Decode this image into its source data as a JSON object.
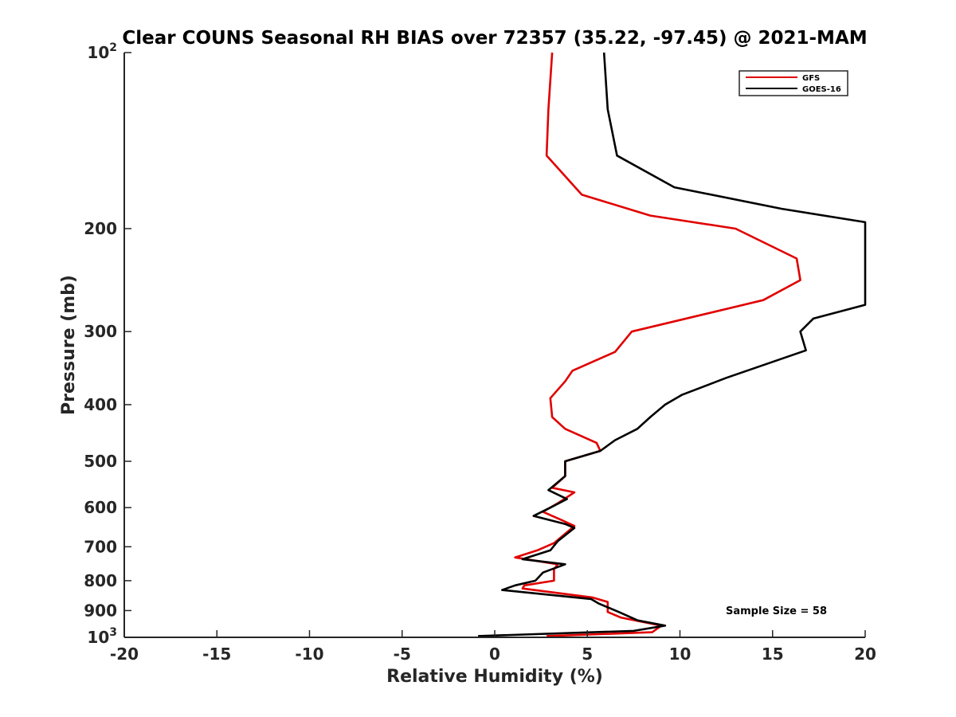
{
  "chart_data": {
    "type": "line",
    "title": "Clear COUNS Seasonal RH BIAS over 72357 (35.22, -97.45) @ 2021-MAM",
    "xlabel": "Relative Humidity (%)",
    "ylabel": "Pressure (mb)",
    "xlim": [
      -20,
      20
    ],
    "ylim": [
      100,
      1000
    ],
    "y_scale": "log",
    "y_reversed": true,
    "x_ticks": [
      "-20",
      "-15",
      "-10",
      "-5",
      "0",
      "5",
      "10",
      "15",
      "20"
    ],
    "y_ticks": [
      {
        "value": 100,
        "base": "10",
        "exp": "2"
      },
      {
        "value": 200,
        "label": "200"
      },
      {
        "value": 300,
        "label": "300"
      },
      {
        "value": 400,
        "label": "400"
      },
      {
        "value": 500,
        "label": "500"
      },
      {
        "value": 600,
        "label": "600"
      },
      {
        "value": 700,
        "label": "700"
      },
      {
        "value": 800,
        "label": "800"
      },
      {
        "value": 900,
        "label": "900"
      },
      {
        "value": 1000,
        "base": "10",
        "exp": "3"
      }
    ],
    "legend_position": "top-right",
    "annotation": "Sample Size = 58",
    "series": [
      {
        "name": "GFS",
        "color": "#e00000",
        "points": [
          [
            3.1,
            100
          ],
          [
            2.9,
            125
          ],
          [
            2.8,
            150
          ],
          [
            4.7,
            175
          ],
          [
            8.4,
            190
          ],
          [
            13.0,
            200
          ],
          [
            16.3,
            225
          ],
          [
            16.5,
            245
          ],
          [
            14.5,
            265
          ],
          [
            7.4,
            300
          ],
          [
            6.5,
            325
          ],
          [
            4.2,
            350
          ],
          [
            3.8,
            365
          ],
          [
            3.0,
            390
          ],
          [
            3.1,
            420
          ],
          [
            3.8,
            440
          ],
          [
            5.5,
            465
          ],
          [
            5.7,
            480
          ],
          [
            3.8,
            500
          ],
          [
            3.8,
            530
          ],
          [
            3.1,
            555
          ],
          [
            4.3,
            565
          ],
          [
            3.4,
            590
          ],
          [
            2.6,
            610
          ],
          [
            3.6,
            630
          ],
          [
            4.3,
            645
          ],
          [
            3.2,
            690
          ],
          [
            2.3,
            710
          ],
          [
            1.1,
            730
          ],
          [
            3.4,
            750
          ],
          [
            3.2,
            765
          ],
          [
            3.2,
            800
          ],
          [
            1.6,
            815
          ],
          [
            1.5,
            825
          ],
          [
            5.3,
            855
          ],
          [
            6.1,
            870
          ],
          [
            6.1,
            905
          ],
          [
            6.8,
            925
          ],
          [
            9.0,
            955
          ],
          [
            8.5,
            980
          ],
          [
            2.8,
            995
          ]
        ]
      },
      {
        "name": "GOES-16",
        "color": "#000000",
        "points": [
          [
            5.9,
            100
          ],
          [
            6.1,
            125
          ],
          [
            6.6,
            150
          ],
          [
            9.7,
            170
          ],
          [
            15.5,
            185
          ],
          [
            20.0,
            195
          ],
          [
            20.0,
            270
          ],
          [
            17.2,
            285
          ],
          [
            16.5,
            300
          ],
          [
            16.8,
            323
          ],
          [
            12.5,
            360
          ],
          [
            10.1,
            385
          ],
          [
            9.2,
            400
          ],
          [
            8.4,
            420
          ],
          [
            7.7,
            440
          ],
          [
            6.5,
            460
          ],
          [
            5.7,
            480
          ],
          [
            3.8,
            500
          ],
          [
            3.8,
            530
          ],
          [
            2.9,
            560
          ],
          [
            3.9,
            580
          ],
          [
            3.0,
            600
          ],
          [
            2.1,
            620
          ],
          [
            3.8,
            640
          ],
          [
            4.3,
            650
          ],
          [
            3.4,
            685
          ],
          [
            3.0,
            710
          ],
          [
            1.5,
            735
          ],
          [
            3.8,
            750
          ],
          [
            2.6,
            775
          ],
          [
            2.2,
            800
          ],
          [
            1.1,
            815
          ],
          [
            0.4,
            830
          ],
          [
            5.2,
            860
          ],
          [
            5.6,
            875
          ],
          [
            6.7,
            905
          ],
          [
            7.7,
            935
          ],
          [
            9.2,
            955
          ],
          [
            7.5,
            975
          ],
          [
            -0.9,
            995
          ]
        ]
      }
    ]
  }
}
